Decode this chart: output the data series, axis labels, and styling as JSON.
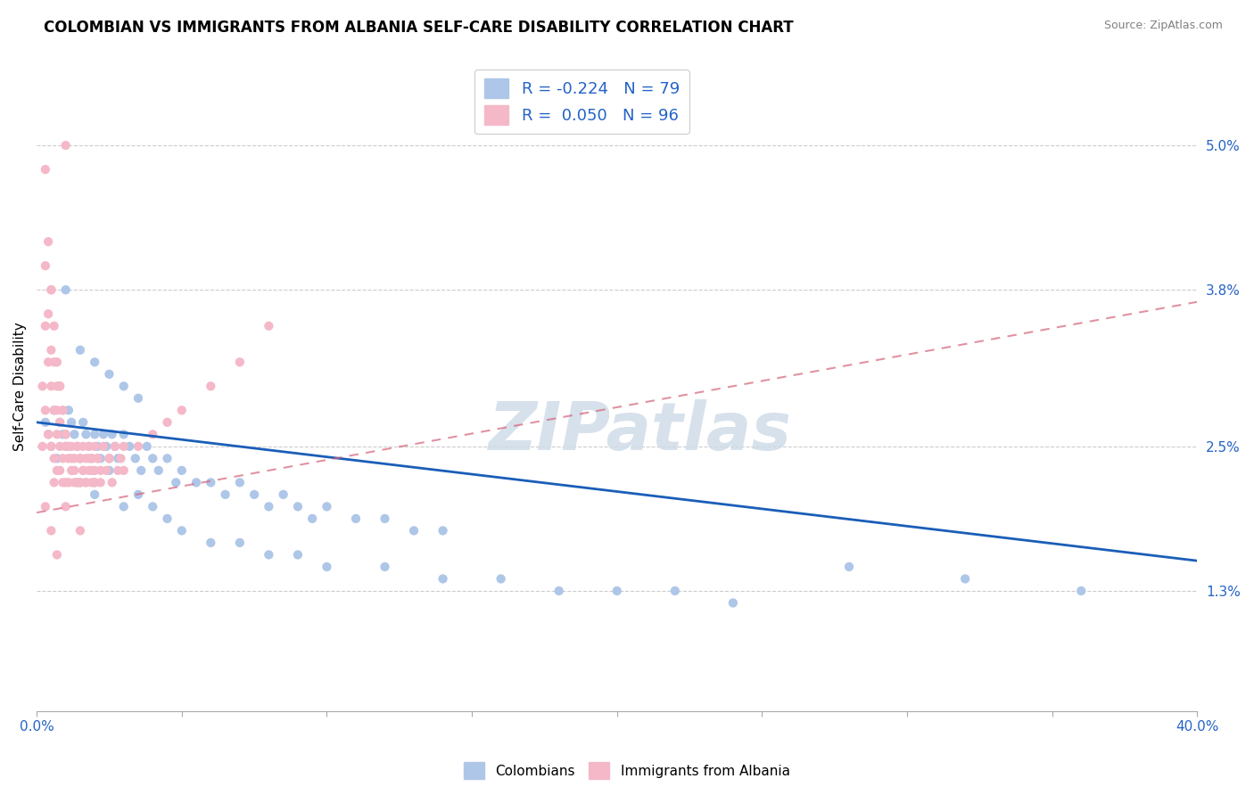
{
  "title": "COLOMBIAN VS IMMIGRANTS FROM ALBANIA SELF-CARE DISABILITY CORRELATION CHART",
  "source": "Source: ZipAtlas.com",
  "ylabel": "Self-Care Disability",
  "yticks": [
    0.013,
    0.025,
    0.038,
    0.05
  ],
  "ytick_labels": [
    "1.3%",
    "2.5%",
    "3.8%",
    "5.0%"
  ],
  "xlim": [
    0.0,
    0.4
  ],
  "ylim": [
    0.003,
    0.057
  ],
  "blue_color": "#aec6e8",
  "pink_color": "#f5b8c8",
  "blue_line_color": "#1a5eb8",
  "pink_line_color": "#d4647a",
  "legend_blue_label": "R = -0.224   N = 79",
  "legend_pink_label": "R =  0.050   N = 96",
  "legend_title_blue": "Colombians",
  "legend_title_pink": "Immigrants from Albania",
  "watermark": "ZIPatlas",
  "blue_scatter_x": [
    0.003,
    0.004,
    0.005,
    0.006,
    0.007,
    0.008,
    0.009,
    0.01,
    0.011,
    0.012,
    0.013,
    0.014,
    0.015,
    0.016,
    0.017,
    0.018,
    0.019,
    0.02,
    0.021,
    0.022,
    0.023,
    0.024,
    0.025,
    0.026,
    0.027,
    0.028,
    0.03,
    0.032,
    0.034,
    0.036,
    0.038,
    0.04,
    0.042,
    0.045,
    0.048,
    0.05,
    0.055,
    0.06,
    0.065,
    0.07,
    0.075,
    0.08,
    0.085,
    0.09,
    0.095,
    0.1,
    0.11,
    0.12,
    0.13,
    0.14,
    0.015,
    0.02,
    0.025,
    0.03,
    0.035,
    0.04,
    0.045,
    0.05,
    0.06,
    0.07,
    0.08,
    0.09,
    0.1,
    0.12,
    0.14,
    0.16,
    0.18,
    0.2,
    0.22,
    0.24,
    0.01,
    0.015,
    0.02,
    0.025,
    0.03,
    0.035,
    0.32,
    0.28,
    0.36
  ],
  "blue_scatter_y": [
    0.027,
    0.026,
    0.025,
    0.028,
    0.024,
    0.027,
    0.026,
    0.025,
    0.028,
    0.027,
    0.026,
    0.025,
    0.024,
    0.027,
    0.026,
    0.025,
    0.024,
    0.026,
    0.025,
    0.024,
    0.026,
    0.025,
    0.024,
    0.026,
    0.025,
    0.024,
    0.026,
    0.025,
    0.024,
    0.023,
    0.025,
    0.024,
    0.023,
    0.024,
    0.022,
    0.023,
    0.022,
    0.022,
    0.021,
    0.022,
    0.021,
    0.02,
    0.021,
    0.02,
    0.019,
    0.02,
    0.019,
    0.019,
    0.018,
    0.018,
    0.022,
    0.021,
    0.023,
    0.02,
    0.021,
    0.02,
    0.019,
    0.018,
    0.017,
    0.017,
    0.016,
    0.016,
    0.015,
    0.015,
    0.014,
    0.014,
    0.013,
    0.013,
    0.013,
    0.012,
    0.038,
    0.033,
    0.032,
    0.031,
    0.03,
    0.029,
    0.014,
    0.015,
    0.013
  ],
  "pink_scatter_x": [
    0.002,
    0.002,
    0.003,
    0.003,
    0.003,
    0.004,
    0.004,
    0.004,
    0.005,
    0.005,
    0.005,
    0.005,
    0.006,
    0.006,
    0.006,
    0.006,
    0.007,
    0.007,
    0.007,
    0.007,
    0.008,
    0.008,
    0.008,
    0.008,
    0.009,
    0.009,
    0.009,
    0.01,
    0.01,
    0.01,
    0.011,
    0.011,
    0.012,
    0.012,
    0.013,
    0.013,
    0.014,
    0.014,
    0.015,
    0.015,
    0.016,
    0.016,
    0.017,
    0.017,
    0.018,
    0.018,
    0.019,
    0.019,
    0.02,
    0.02,
    0.021,
    0.022,
    0.023,
    0.024,
    0.025,
    0.026,
    0.027,
    0.028,
    0.029,
    0.03,
    0.003,
    0.004,
    0.005,
    0.006,
    0.007,
    0.008,
    0.009,
    0.01,
    0.011,
    0.012,
    0.013,
    0.014,
    0.015,
    0.016,
    0.017,
    0.018,
    0.019,
    0.02,
    0.021,
    0.022,
    0.003,
    0.005,
    0.007,
    0.01,
    0.015,
    0.02,
    0.025,
    0.03,
    0.035,
    0.04,
    0.045,
    0.05,
    0.06,
    0.07,
    0.08,
    0.01
  ],
  "pink_scatter_y": [
    0.025,
    0.03,
    0.028,
    0.035,
    0.04,
    0.032,
    0.036,
    0.026,
    0.03,
    0.038,
    0.033,
    0.025,
    0.028,
    0.032,
    0.024,
    0.022,
    0.03,
    0.026,
    0.023,
    0.028,
    0.025,
    0.03,
    0.023,
    0.027,
    0.028,
    0.024,
    0.022,
    0.026,
    0.022,
    0.025,
    0.024,
    0.022,
    0.025,
    0.023,
    0.024,
    0.022,
    0.025,
    0.022,
    0.024,
    0.022,
    0.025,
    0.023,
    0.024,
    0.022,
    0.025,
    0.023,
    0.024,
    0.022,
    0.025,
    0.023,
    0.024,
    0.022,
    0.025,
    0.023,
    0.024,
    0.022,
    0.025,
    0.023,
    0.024,
    0.025,
    0.048,
    0.042,
    0.038,
    0.035,
    0.032,
    0.03,
    0.028,
    0.026,
    0.025,
    0.024,
    0.023,
    0.022,
    0.024,
    0.023,
    0.022,
    0.024,
    0.023,
    0.022,
    0.024,
    0.023,
    0.02,
    0.018,
    0.016,
    0.02,
    0.018,
    0.022,
    0.024,
    0.023,
    0.025,
    0.026,
    0.027,
    0.028,
    0.03,
    0.032,
    0.035,
    0.05
  ]
}
